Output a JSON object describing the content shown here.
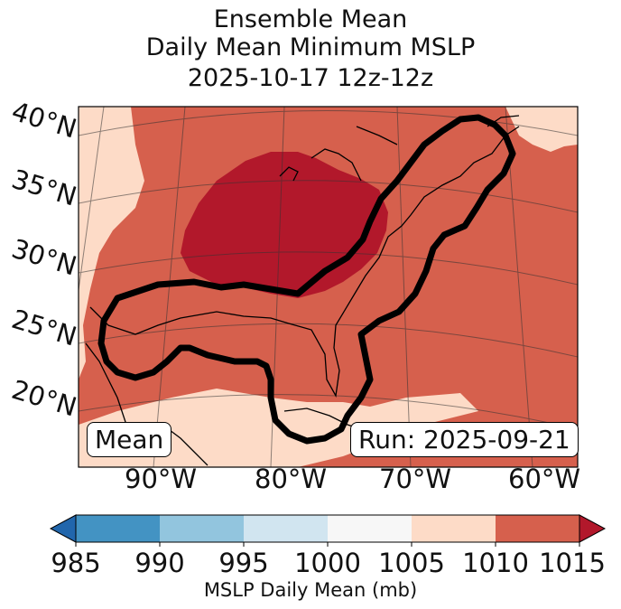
{
  "title": {
    "line1": "Ensemble Mean",
    "line2": "Daily Mean Minimum MSLP",
    "line3": "2025-10-17 12z-12z"
  },
  "latitude_labels": [
    "40°N",
    "35°N",
    "30°N",
    "25°N",
    "20°N"
  ],
  "longitude_labels": [
    "90°W",
    "80°W",
    "70°W",
    "60°W"
  ],
  "mean_box": "Mean",
  "run_box": "Run: 2025-09-21",
  "colorbar": {
    "label": "MSLP Daily Mean (mb)",
    "ticks": [
      "985",
      "990",
      "995",
      "1000",
      "1005",
      "1010",
      "1015"
    ],
    "colors": [
      "#2166ac",
      "#4393c3",
      "#92c5de",
      "#d1e5f0",
      "#f7f7f7",
      "#fddbc7",
      "#d6604d",
      "#b2182b"
    ]
  },
  "colors": {
    "light": "#fddbc7",
    "mid": "#d6604d",
    "dark": "#b2182b",
    "outline": "#000000"
  }
}
